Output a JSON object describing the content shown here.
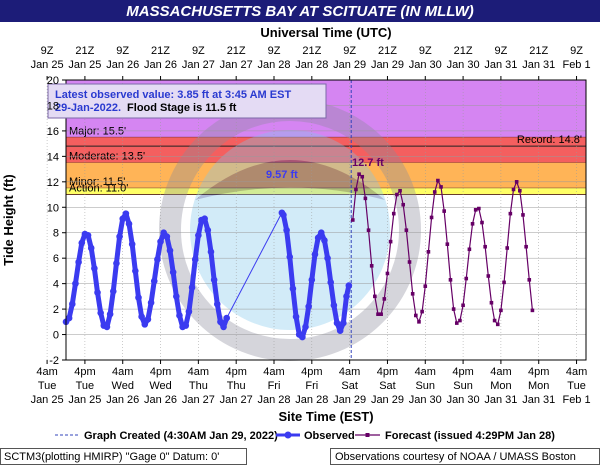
{
  "chart_data": {
    "type": "line",
    "title": "MASSACHUSETTS BAY AT SCITUATE (IN MLLW)",
    "x2label": "Universal Time (UTC)",
    "xlabel": "Site Time (EST)",
    "ylabel": "Tide Height (ft)",
    "xlim": [
      10,
      175
    ],
    "ylim": [
      -2,
      20
    ],
    "yticks": [
      -2,
      0,
      2,
      4,
      6,
      8,
      10,
      12,
      14,
      16,
      18,
      20
    ],
    "xticks": [
      {
        "value": 4,
        "label": [
          "4am",
          "Tue",
          "Jan 25"
        ]
      },
      {
        "value": 16,
        "label": [
          "4pm",
          "Tue",
          "Jan 25"
        ]
      },
      {
        "value": 28,
        "label": [
          "4am",
          "Wed",
          "Jan 26"
        ]
      },
      {
        "value": 40,
        "label": [
          "4pm",
          "Wed",
          "Jan 26"
        ]
      },
      {
        "value": 52,
        "label": [
          "4am",
          "Thu",
          "Jan 27"
        ]
      },
      {
        "value": 64,
        "label": [
          "4pm",
          "Thu",
          "Jan 27"
        ]
      },
      {
        "value": 76,
        "label": [
          "4am",
          "Fri",
          "Jan 28"
        ]
      },
      {
        "value": 88,
        "label": [
          "4pm",
          "Fri",
          "Jan 28"
        ]
      },
      {
        "value": 100,
        "label": [
          "4am",
          "Sat",
          "Jan 29"
        ]
      },
      {
        "value": 112,
        "label": [
          "4pm",
          "Sat",
          "Jan 29"
        ]
      },
      {
        "value": 124,
        "label": [
          "4am",
          "Sun",
          "Jan 30"
        ]
      },
      {
        "value": 136,
        "label": [
          "4pm",
          "Sun",
          "Jan 30"
        ]
      },
      {
        "value": 148,
        "label": [
          "4am",
          "Mon",
          "Jan 31"
        ]
      },
      {
        "value": 160,
        "label": [
          "4pm",
          "Mon",
          "Jan 31"
        ]
      },
      {
        "value": 172,
        "label": [
          "4am",
          "Tue",
          "Feb 1"
        ]
      }
    ],
    "x2ticks": [
      {
        "value": 4,
        "label": [
          "9Z",
          "Jan 25"
        ]
      },
      {
        "value": 16,
        "label": [
          "21Z",
          "Jan 25"
        ]
      },
      {
        "value": 28,
        "label": [
          "9Z",
          "Jan 26"
        ]
      },
      {
        "value": 40,
        "label": [
          "21Z",
          "Jan 26"
        ]
      },
      {
        "value": 52,
        "label": [
          "9Z",
          "Jan 27"
        ]
      },
      {
        "value": 64,
        "label": [
          "21Z",
          "Jan 27"
        ]
      },
      {
        "value": 76,
        "label": [
          "9Z",
          "Jan 28"
        ]
      },
      {
        "value": 88,
        "label": [
          "21Z",
          "Jan 28"
        ]
      },
      {
        "value": 100,
        "label": [
          "9Z",
          "Jan 29"
        ]
      },
      {
        "value": 112,
        "label": [
          "21Z",
          "Jan 29"
        ]
      },
      {
        "value": 124,
        "label": [
          "9Z",
          "Jan 30"
        ]
      },
      {
        "value": 136,
        "label": [
          "21Z",
          "Jan 30"
        ]
      },
      {
        "value": 148,
        "label": [
          "9Z",
          "Jan 31"
        ]
      },
      {
        "value": 160,
        "label": [
          "21Z",
          "Jan 31"
        ]
      },
      {
        "value": 172,
        "label": [
          "9Z",
          "Feb 1"
        ]
      }
    ],
    "grid": true,
    "stages": [
      {
        "name": "Major: 15.5'",
        "value": 15.5,
        "color": "#d585f2"
      },
      {
        "name": "Moderate: 13.5'",
        "value": 13.5,
        "color": "#f45f5f"
      },
      {
        "name": "Minor: 11.5'",
        "value": 11.5,
        "color": "#ffb457"
      },
      {
        "name": "Action: 11.0'",
        "value": 11.0,
        "color": "#ffff66"
      }
    ],
    "record": {
      "name": "Record: 14.8'",
      "value": 14.8
    },
    "created": {
      "name": "Graph Created (4:30AM Jan 29, 2022)",
      "x": 100.5,
      "color": "#3344bb"
    },
    "series": [
      {
        "name": "Observed",
        "color": "#3b3bf0",
        "x": [
          10,
          11,
          12,
          13,
          14,
          15,
          16,
          17,
          18,
          19,
          20,
          21,
          22,
          23,
          24,
          25,
          26,
          27,
          28,
          29,
          30,
          31,
          32,
          33,
          34,
          35,
          36,
          37,
          38,
          39,
          40,
          41,
          42,
          43,
          44,
          45,
          46,
          47,
          48,
          49,
          50,
          51,
          52,
          53,
          54,
          55,
          56,
          57,
          58,
          59,
          60,
          61,
          78.5,
          79,
          80,
          81,
          82,
          83,
          84,
          85,
          86,
          87,
          88,
          89,
          90,
          91,
          92,
          93,
          94,
          95,
          96,
          97,
          98,
          99,
          99.75
        ],
        "values": [
          1.0,
          1.3,
          2.4,
          4.0,
          5.7,
          7.2,
          7.9,
          7.8,
          6.8,
          5.2,
          3.3,
          1.7,
          0.7,
          0.6,
          1.6,
          3.4,
          5.6,
          7.7,
          9.1,
          9.5,
          8.7,
          7.1,
          5.0,
          2.9,
          1.4,
          0.8,
          1.2,
          2.5,
          4.2,
          5.9,
          7.3,
          8.0,
          7.7,
          6.6,
          4.9,
          3.0,
          1.5,
          0.6,
          0.7,
          1.8,
          3.7,
          5.9,
          7.8,
          9.0,
          9.1,
          8.2,
          6.5,
          4.3,
          2.4,
          1.0,
          0.6,
          1.3,
          9.57,
          9.4,
          8.2,
          6.1,
          3.6,
          1.4,
          0.0,
          -0.2,
          0.6,
          2.2,
          4.3,
          6.3,
          7.6,
          8.0,
          7.4,
          6.0,
          4.1,
          2.3,
          0.9,
          0.3,
          0.9,
          3.0,
          3.85
        ]
      },
      {
        "name": "Forecast (issued 4:29PM Jan 28)",
        "color": "#660066",
        "x": [
          101,
          102,
          103,
          104,
          105,
          106,
          107,
          108,
          109,
          110,
          111,
          112,
          113,
          114,
          115,
          116,
          117,
          118,
          119,
          120,
          121,
          122,
          123,
          124,
          125,
          126,
          127,
          128,
          129,
          130,
          131,
          132,
          133,
          134,
          135,
          136,
          137,
          138,
          139,
          140,
          141,
          142,
          143,
          144,
          145,
          146,
          147,
          148,
          149,
          150,
          151,
          152,
          153,
          154,
          155,
          156,
          157,
          158
        ],
        "values": [
          9.0,
          11.4,
          12.6,
          12.4,
          10.7,
          8.2,
          5.4,
          3.0,
          1.6,
          1.6,
          2.8,
          4.8,
          7.3,
          9.5,
          11.0,
          11.3,
          10.2,
          8.2,
          5.7,
          3.2,
          1.5,
          1.0,
          1.8,
          3.8,
          6.5,
          9.2,
          11.2,
          12.1,
          11.6,
          9.7,
          7.1,
          4.3,
          2.0,
          0.9,
          1.1,
          2.3,
          4.4,
          6.7,
          8.7,
          9.8,
          9.9,
          8.8,
          6.9,
          4.6,
          2.5,
          1.1,
          0.8,
          1.9,
          4.1,
          6.8,
          9.5,
          11.4,
          12.0,
          11.3,
          9.4,
          6.9,
          4.3,
          1.9
        ]
      }
    ],
    "annotations": [
      "9.57 ft",
      "12.7 ft"
    ],
    "info": {
      "line1": "Latest observed value: 3.85 ft at 3:45 AM EST",
      "date": "29-Jan-2022.",
      "flood": "Flood Stage is 11.5 ft"
    },
    "footer_left": "SCTM3(plotting HMIRP) \"Gage 0\" Datum:  0'",
    "footer_right": "Observations courtesy of NOAA / UMASS Boston"
  }
}
